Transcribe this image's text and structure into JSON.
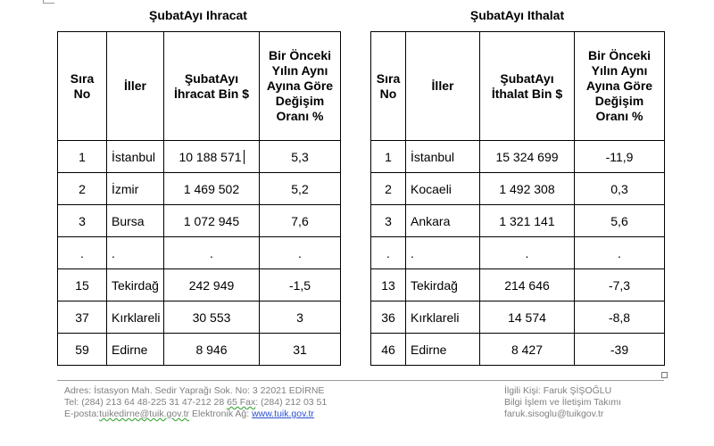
{
  "export_table": {
    "title": "ŞubatAyı Ihracat",
    "headers": {
      "rank": "Sıra No",
      "city": "İller",
      "value": "ŞubatAyı İhracat Bin $",
      "change": "Bir Önceki Yılın Aynı Ayına Göre Değişim Oranı %"
    },
    "rows": [
      {
        "rank": "1",
        "city": "İstanbul",
        "value": "10 188 571",
        "change": "5,3"
      },
      {
        "rank": "2",
        "city": "İzmir",
        "value": "1 469 502",
        "change": "5,2"
      },
      {
        "rank": "3",
        "city": "Bursa",
        "value": "1 072 945",
        "change": "7,6"
      },
      {
        "rank": ".",
        "city": ".",
        "value": ".",
        "change": "."
      },
      {
        "rank": "15",
        "city": "Tekirdağ",
        "value": "242 949",
        "change": "-1,5"
      },
      {
        "rank": "37",
        "city": "Kırklareli",
        "value": "30 553",
        "change": "3"
      },
      {
        "rank": "59",
        "city": "Edirne",
        "value": "8 946",
        "change": "31"
      }
    ]
  },
  "import_table": {
    "title": "ŞubatAyı Ithalat",
    "headers": {
      "rank": "Sıra No",
      "city": "İller",
      "value": "ŞubatAyı İthalat Bin $",
      "change": "Bir Önceki Yılın Aynı Ayına Göre Değişim Oranı %"
    },
    "rows": [
      {
        "rank": "1",
        "city": "İstanbul",
        "value": "15 324 699",
        "change": "-11,9"
      },
      {
        "rank": "2",
        "city": "Kocaeli",
        "value": "1 492 308",
        "change": "0,3"
      },
      {
        "rank": "3",
        "city": "Ankara",
        "value": "1 321 141",
        "change": "5,6"
      },
      {
        "rank": ".",
        "city": ".",
        "value": ".",
        "change": "."
      },
      {
        "rank": "13",
        "city": "Tekirdağ",
        "value": "214 646",
        "change": "-7,3"
      },
      {
        "rank": "36",
        "city": "Kırklareli",
        "value": "14 574",
        "change": "-8,8"
      },
      {
        "rank": "46",
        "city": "Edirne",
        "value": "8 427",
        "change": "-39"
      }
    ]
  },
  "footer": {
    "address": "Adres: İstasyon Mah. Sedir Yaprağı Sok. No: 3 22021 EDİRNE",
    "phone_prefix": "Tel: (284) 213 64 48-225 31 47-212 28 ",
    "phone_squiggle": "65 Fax",
    "phone_suffix": ": (284) 212 03 51",
    "email_label": "E-posta:",
    "email": "tuikedirne@tuik.gov.tr",
    "web_label": " Elektronik Ağ: ",
    "web": "www.tuik.gov.tr",
    "contact": "İlgili Kişi: Faruk ŞİŞOĞLU",
    "department": "Bilgi İşlem ve İletişim Takımı",
    "contact_email": "faruk.sisoglu@tuikgov.tr"
  }
}
